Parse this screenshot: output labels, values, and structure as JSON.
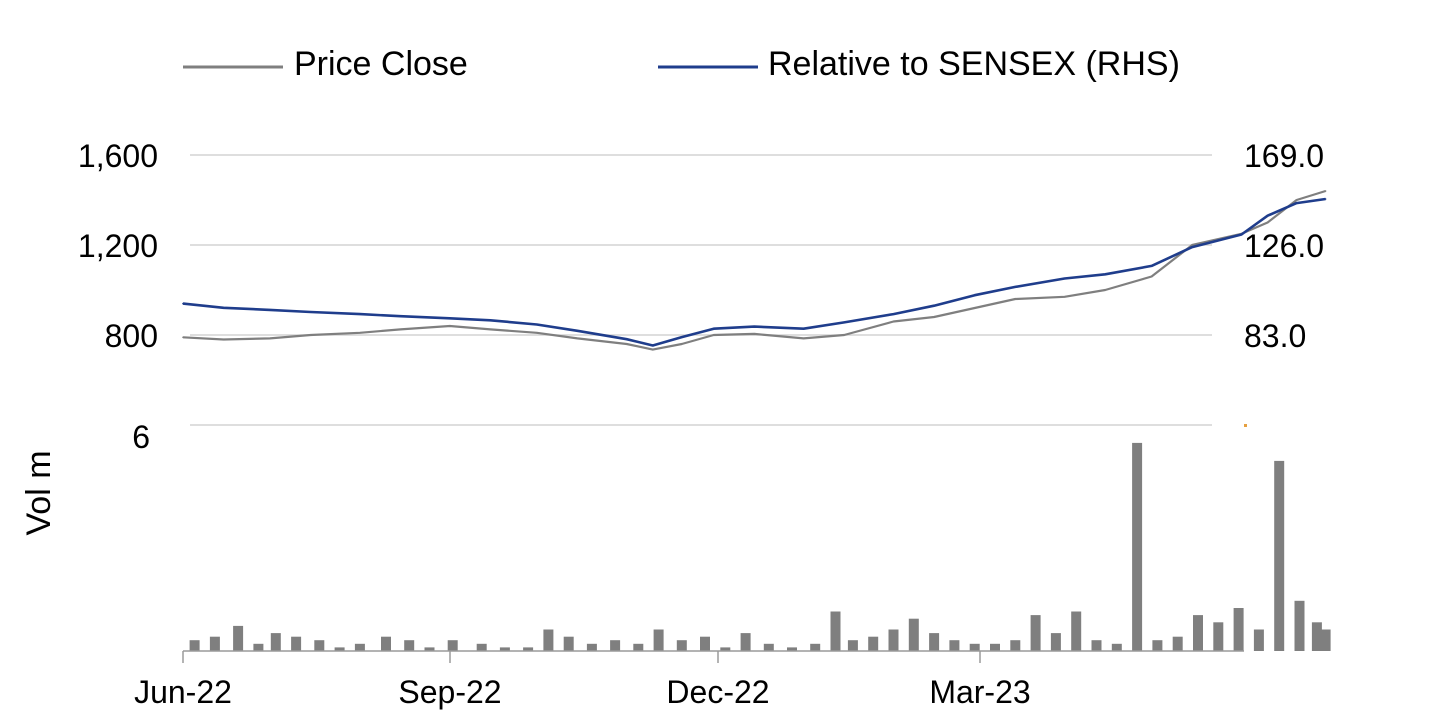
{
  "chart_data": [
    {
      "type": "line",
      "legend": {
        "placement": "top",
        "entries": [
          "Price Close",
          "Relative to SENSEX (RHS)"
        ]
      },
      "x_tick_labels": [
        "Jun-22",
        "Sep-22",
        "Dec-22",
        "Mar-23"
      ],
      "y_left": {
        "ticks": [
          800,
          1200,
          1600
        ],
        "tick_labels": [
          "800",
          "1,200",
          "1,600"
        ],
        "range": [
          640,
          1600
        ]
      },
      "y_right": {
        "ticks": [
          83,
          126,
          169
        ],
        "tick_labels": [
          "83.0",
          "126.0",
          "169.0"
        ],
        "range": [
          83,
          169
        ]
      },
      "grid": true,
      "series": [
        {
          "name": "Price Close",
          "axis": "left",
          "color": "#7f7f7f",
          "x": [
            "2022-06-01",
            "2022-06-15",
            "2022-07-01",
            "2022-07-15",
            "2022-08-01",
            "2022-08-15",
            "2022-09-01",
            "2022-09-15",
            "2022-10-01",
            "2022-10-15",
            "2022-11-01",
            "2022-11-10",
            "2022-11-20",
            "2022-12-01",
            "2022-12-15",
            "2023-01-01",
            "2023-01-15",
            "2023-02-01",
            "2023-02-15",
            "2023-03-01",
            "2023-03-15",
            "2023-04-01",
            "2023-04-15",
            "2023-05-01",
            "2023-05-15",
            "2023-06-01",
            "2023-06-10",
            "2023-06-20",
            "2023-06-30"
          ],
          "values": [
            790,
            780,
            785,
            800,
            810,
            825,
            840,
            825,
            810,
            785,
            760,
            735,
            760,
            800,
            805,
            785,
            800,
            860,
            880,
            920,
            960,
            970,
            1000,
            1060,
            1200,
            1250,
            1300,
            1400,
            1440
          ]
        },
        {
          "name": "Relative to SENSEX (RHS)",
          "axis": "right",
          "color": "#1f3d8c",
          "x": [
            "2022-06-01",
            "2022-06-15",
            "2022-07-01",
            "2022-07-15",
            "2022-08-01",
            "2022-08-15",
            "2022-09-01",
            "2022-09-15",
            "2022-10-01",
            "2022-10-15",
            "2022-11-01",
            "2022-11-10",
            "2022-11-20",
            "2022-12-01",
            "2022-12-15",
            "2023-01-01",
            "2023-01-15",
            "2023-02-01",
            "2023-02-15",
            "2023-03-01",
            "2023-03-15",
            "2023-04-01",
            "2023-04-15",
            "2023-05-01",
            "2023-05-15",
            "2023-06-01",
            "2023-06-10",
            "2023-06-20",
            "2023-06-30"
          ],
          "values": [
            98,
            96,
            95,
            94,
            93,
            92,
            91,
            90,
            88,
            85,
            81,
            78,
            82,
            86,
            87,
            86,
            89,
            93,
            97,
            102,
            106,
            110,
            112,
            116,
            125,
            131,
            140,
            146,
            148
          ]
        }
      ]
    },
    {
      "type": "bar",
      "ylabel": "Vol m",
      "y_ticks": [
        6
      ],
      "y_tick_labels": [
        "6"
      ],
      "ylim": [
        0,
        6.3
      ],
      "x_tick_labels": [
        "Jun-22",
        "Sep-22",
        "Dec-22",
        "Mar-23"
      ],
      "bar_color": "#7f7f7f",
      "series": [
        {
          "x": [
            "2022-06-05",
            "2022-06-12",
            "2022-06-20",
            "2022-06-27",
            "2022-07-03",
            "2022-07-10",
            "2022-07-18",
            "2022-07-25",
            "2022-08-01",
            "2022-08-10",
            "2022-08-18",
            "2022-08-25",
            "2022-09-02",
            "2022-09-12",
            "2022-09-20",
            "2022-09-28",
            "2022-10-05",
            "2022-10-12",
            "2022-10-20",
            "2022-10-28",
            "2022-11-05",
            "2022-11-12",
            "2022-11-20",
            "2022-11-28",
            "2022-12-05",
            "2022-12-12",
            "2022-12-20",
            "2022-12-28",
            "2023-01-05",
            "2023-01-12",
            "2023-01-18",
            "2023-01-25",
            "2023-02-01",
            "2023-02-08",
            "2023-02-15",
            "2023-02-22",
            "2023-03-01",
            "2023-03-08",
            "2023-03-15",
            "2023-03-22",
            "2023-03-29",
            "2023-04-05",
            "2023-04-12",
            "2023-04-19",
            "2023-04-26",
            "2023-05-03",
            "2023-05-10",
            "2023-05-17",
            "2023-05-24",
            "2023-05-31",
            "2023-06-07",
            "2023-06-14",
            "2023-06-21",
            "2023-06-27",
            "2023-06-30"
          ],
          "values": [
            0.3,
            0.4,
            0.7,
            0.2,
            0.5,
            0.4,
            0.3,
            0.1,
            0.2,
            0.4,
            0.3,
            0.1,
            0.3,
            0.2,
            0.1,
            0.1,
            0.6,
            0.4,
            0.2,
            0.3,
            0.2,
            0.6,
            0.3,
            0.4,
            0.1,
            0.5,
            0.2,
            0.1,
            0.2,
            1.1,
            0.3,
            0.4,
            0.6,
            0.9,
            0.5,
            0.3,
            0.2,
            0.2,
            0.3,
            1.0,
            0.5,
            1.1,
            0.3,
            0.2,
            5.8,
            0.3,
            0.4,
            1.0,
            0.8,
            1.2,
            0.6,
            5.3,
            1.4,
            0.8,
            0.6
          ]
        }
      ]
    }
  ]
}
